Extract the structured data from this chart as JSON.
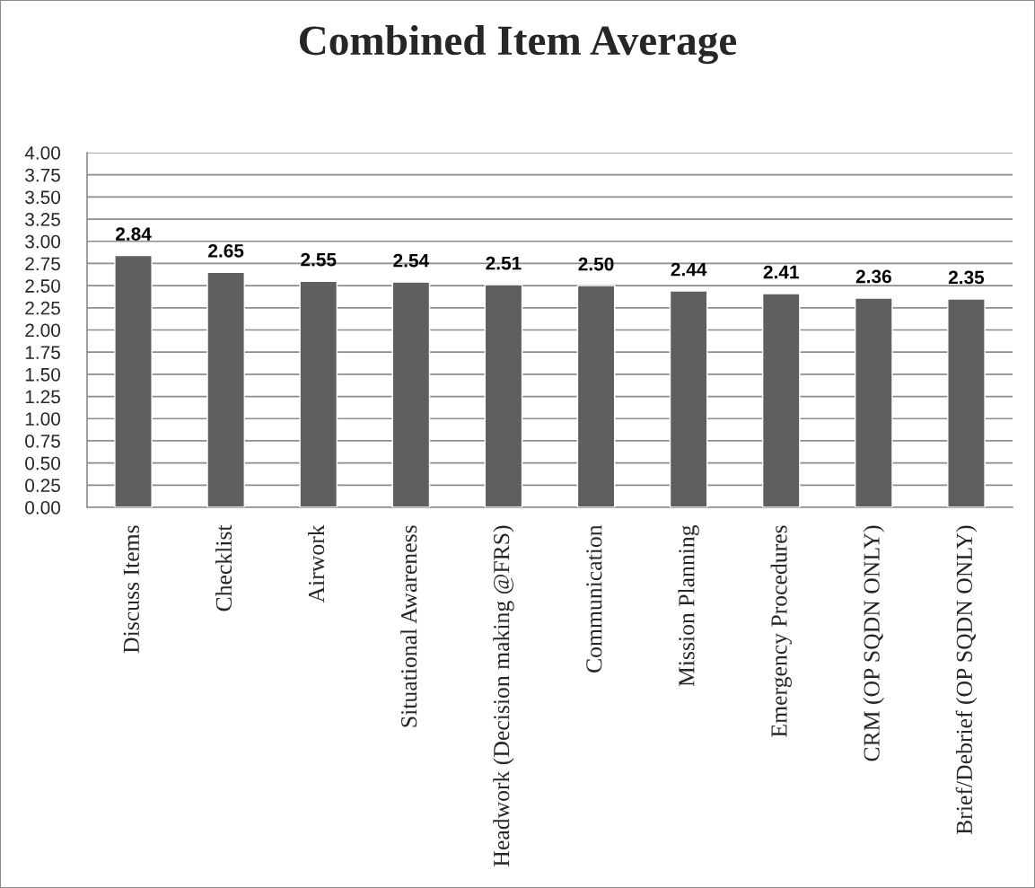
{
  "chart_data": {
    "type": "bar",
    "title": "Combined Item Average",
    "categories": [
      "Discuss Items",
      "Checklist",
      "Airwork",
      "Situational Awareness",
      "Headwork (Decision making @FRS)",
      "Communication",
      "Mission Planning",
      "Emergency Procedures",
      "CRM (OP SQDN ONLY)",
      "Brief/Debrief (OP SQDN ONLY)"
    ],
    "values": [
      2.84,
      2.65,
      2.55,
      2.54,
      2.51,
      2.5,
      2.44,
      2.41,
      2.36,
      2.35
    ],
    "value_labels": [
      "2.84",
      "2.65",
      "2.55",
      "2.54",
      "2.51",
      "2.50",
      "2.44",
      "2.41",
      "2.36",
      "2.35"
    ],
    "color": "#5f5f5f",
    "ylim": [
      0,
      4
    ],
    "yticks": [
      {
        "value": 0,
        "label": "0.00"
      },
      {
        "value": 0.25,
        "label": "0.25"
      },
      {
        "value": 0.5,
        "label": "0.50"
      },
      {
        "value": 0.75,
        "label": "0.75"
      },
      {
        "value": 1,
        "label": "1.00"
      },
      {
        "value": 1.25,
        "label": "1.25"
      },
      {
        "value": 1.5,
        "label": "1.50"
      },
      {
        "value": 1.75,
        "label": "1.75"
      },
      {
        "value": 2,
        "label": "2.00"
      },
      {
        "value": 2.25,
        "label": "2.25"
      },
      {
        "value": 2.5,
        "label": "2.50"
      },
      {
        "value": 2.75,
        "label": "2.75"
      },
      {
        "value": 3,
        "label": "3.00"
      },
      {
        "value": 3.25,
        "label": "3.25"
      },
      {
        "value": 3.5,
        "label": "3.50"
      },
      {
        "value": 3.75,
        "label": "3.75"
      },
      {
        "value": 4,
        "label": "4.00"
      }
    ],
    "grid": "y"
  }
}
